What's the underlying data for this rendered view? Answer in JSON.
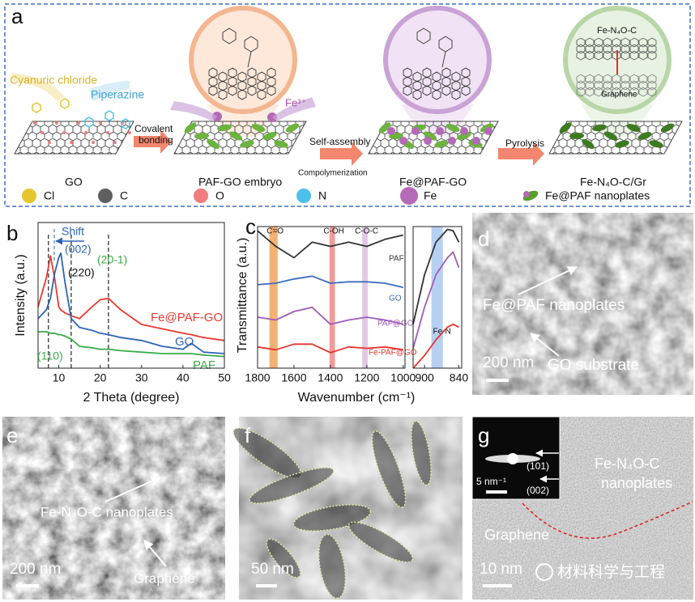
{
  "panel_a": {
    "label": "a",
    "cyanuric_chloride": "Cyanuric chloride",
    "piperazine": "Piperazine",
    "covalent_bonding": [
      "Covalent",
      "bonding"
    ],
    "go": "GO",
    "paf_go_embryo": "PAF-GO embryo",
    "fe3": "Fe³⁺",
    "self_assembly": "Self-assembly",
    "compolymerization": "Compolymerization",
    "fe_paf_go": "Fe@PAF-GO",
    "pyrolysis": "Pyrolysis",
    "product": "Fe-N₄O-C/Gr",
    "inset_top": "Fe-N₄O-C",
    "inset_bottom": "Graphene",
    "legend": [
      {
        "label": "Cl",
        "color": "#e6c62e"
      },
      {
        "label": "C",
        "color": "#606060"
      },
      {
        "label": "O",
        "color": "#f07c7e"
      },
      {
        "label": "N",
        "color": "#4cc0ea"
      },
      {
        "label": "Fe",
        "color": "#b46ab6"
      },
      {
        "label": "Fe@PAF nanoplates",
        "color": "#5a9e2e"
      }
    ]
  },
  "chart_data": [
    {
      "type": "line",
      "label": "b",
      "xlabel": "2 Theta (degree)",
      "ylabel": "Intensity (a.u.)",
      "xlim": [
        5,
        50
      ],
      "xticks": [
        10,
        20,
        30,
        40,
        50
      ],
      "ylim": [
        0,
        100
      ],
      "x": [
        5,
        7,
        8,
        9,
        10,
        10.5,
        11.5,
        13,
        15,
        18,
        20,
        22,
        25,
        30,
        35,
        40,
        42,
        45,
        50
      ],
      "series": [
        {
          "name": "Fe@PAF-GO",
          "color": "#e8392f",
          "values": [
            42,
            62,
            77,
            62,
            42,
            40,
            38,
            36,
            34,
            42,
            47,
            48,
            40,
            30,
            27,
            24,
            23,
            21,
            19
          ]
        },
        {
          "name": "GO",
          "color": "#2e64b4",
          "values": [
            34,
            40,
            48,
            65,
            76,
            79,
            59,
            34,
            28,
            26,
            24,
            23,
            21,
            19,
            15,
            13,
            17,
            11,
            10
          ]
        },
        {
          "name": "PAF",
          "color": "#3aaa48",
          "values": [
            25,
            25,
            24,
            24,
            23,
            23,
            22,
            20,
            15,
            14,
            13,
            13,
            12,
            11,
            10,
            10,
            10,
            9,
            8
          ]
        }
      ],
      "reference_lines": [
        7.5,
        13,
        22
      ],
      "annotations": {
        "shift": "Shift",
        "p002": "(002)",
        "p220": "(220)",
        "p201": "(20-1)",
        "p110": "(110)"
      }
    },
    {
      "type": "line",
      "label": "c",
      "xlabel": "Wavenumber (cm⁻¹)",
      "ylabel": "Transmittance (a.u.)",
      "xlim": [
        1800,
        990
      ],
      "xticks": [
        1800,
        1600,
        1400,
        1200,
        1000
      ],
      "x2lim": [
        920,
        835
      ],
      "x2ticks": [
        900,
        840
      ],
      "ylim": [
        0,
        100
      ],
      "x": [
        1800,
        1700,
        1600,
        1500,
        1400,
        1300,
        1200,
        1100,
        1000
      ],
      "x2": [
        920,
        900,
        880,
        860,
        850,
        840
      ],
      "series": [
        {
          "name": "PAF",
          "color": "#333333",
          "values": [
            97,
            86,
            78,
            89,
            86,
            89,
            86,
            91,
            94
          ],
          "values2": [
            31,
            66,
            89,
            98,
            97,
            89
          ]
        },
        {
          "name": "GO",
          "color": "#3b6fc0",
          "values": [
            59,
            60,
            63,
            65,
            60,
            61,
            61,
            60,
            57
          ],
          "values2": [
            null,
            null,
            null,
            null,
            null,
            null
          ]
        },
        {
          "name": "PAF@GO",
          "color": "#a05cb8",
          "values": [
            36,
            34,
            40,
            43,
            31,
            34,
            36,
            34,
            31
          ],
          "values2": [
            14,
            43,
            66,
            78,
            82,
            71
          ]
        },
        {
          "name": "Fe-PAF@GO",
          "color": "#e8332c",
          "values": [
            15,
            13,
            17,
            17,
            11,
            15,
            14,
            15,
            13
          ],
          "values2": [
            0,
            9,
            20,
            29,
            31,
            29
          ]
        }
      ],
      "bands": [
        {
          "label": "C=O",
          "range": [
            1735,
            1690
          ],
          "color": "#f3a25a"
        },
        {
          "label": "C-OH",
          "range": [
            1405,
            1375
          ],
          "color": "#ef8a8a"
        },
        {
          "label": "C-O-C",
          "range": [
            1225,
            1195
          ],
          "color": "#dcc0e0"
        },
        {
          "label": "Fe-N",
          "range": [
            888,
            868
          ],
          "color": "#aac8ee"
        }
      ]
    }
  ],
  "panel_d": {
    "label": "d",
    "nanoplates": "Fe@PAF nanoplates",
    "substrate": "GO substrate",
    "scale": "200 nm"
  },
  "panel_e": {
    "label": "e",
    "nanoplates": "Fe-N₄O-C nanoplates",
    "graphene": "Graphene",
    "scale": "200 nm"
  },
  "panel_f": {
    "label": "f",
    "scale": "50 nm"
  },
  "panel_g": {
    "label": "g",
    "ring_101": "(101)",
    "ring_002": "(002)",
    "inset_scale": "5 nm⁻¹",
    "nanoplates": [
      "Fe-N₄O-C",
      "nanoplates"
    ],
    "graphene": "Graphene",
    "scale": "10 nm",
    "watermark": "材料科学与工程"
  }
}
